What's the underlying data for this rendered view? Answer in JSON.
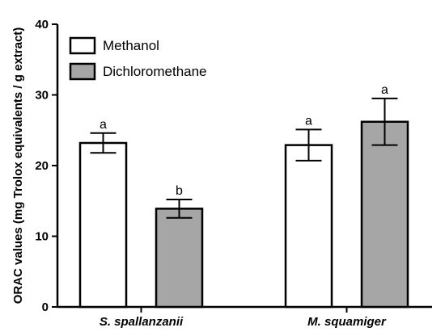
{
  "chart_data": {
    "type": "bar",
    "title": "",
    "xlabel": "",
    "ylabel": "ORAC values (mg Trolox equivalents / g extract)",
    "ylim": [
      0,
      40
    ],
    "yticks": [
      0,
      10,
      20,
      30,
      40
    ],
    "categories": [
      "S. spallanzanii",
      "M. squamiger"
    ],
    "legend_position": "top-left",
    "series": [
      {
        "name": "Methanol",
        "color": "#ffffff",
        "values": [
          23.2,
          22.9
        ],
        "errors": [
          1.4,
          2.2
        ],
        "significance": [
          "a",
          "a"
        ]
      },
      {
        "name": "Dichloromethane",
        "color": "#a6a6a6",
        "values": [
          13.9,
          26.2
        ],
        "errors": [
          1.3,
          3.3
        ],
        "significance": [
          "b",
          "a"
        ]
      }
    ]
  }
}
